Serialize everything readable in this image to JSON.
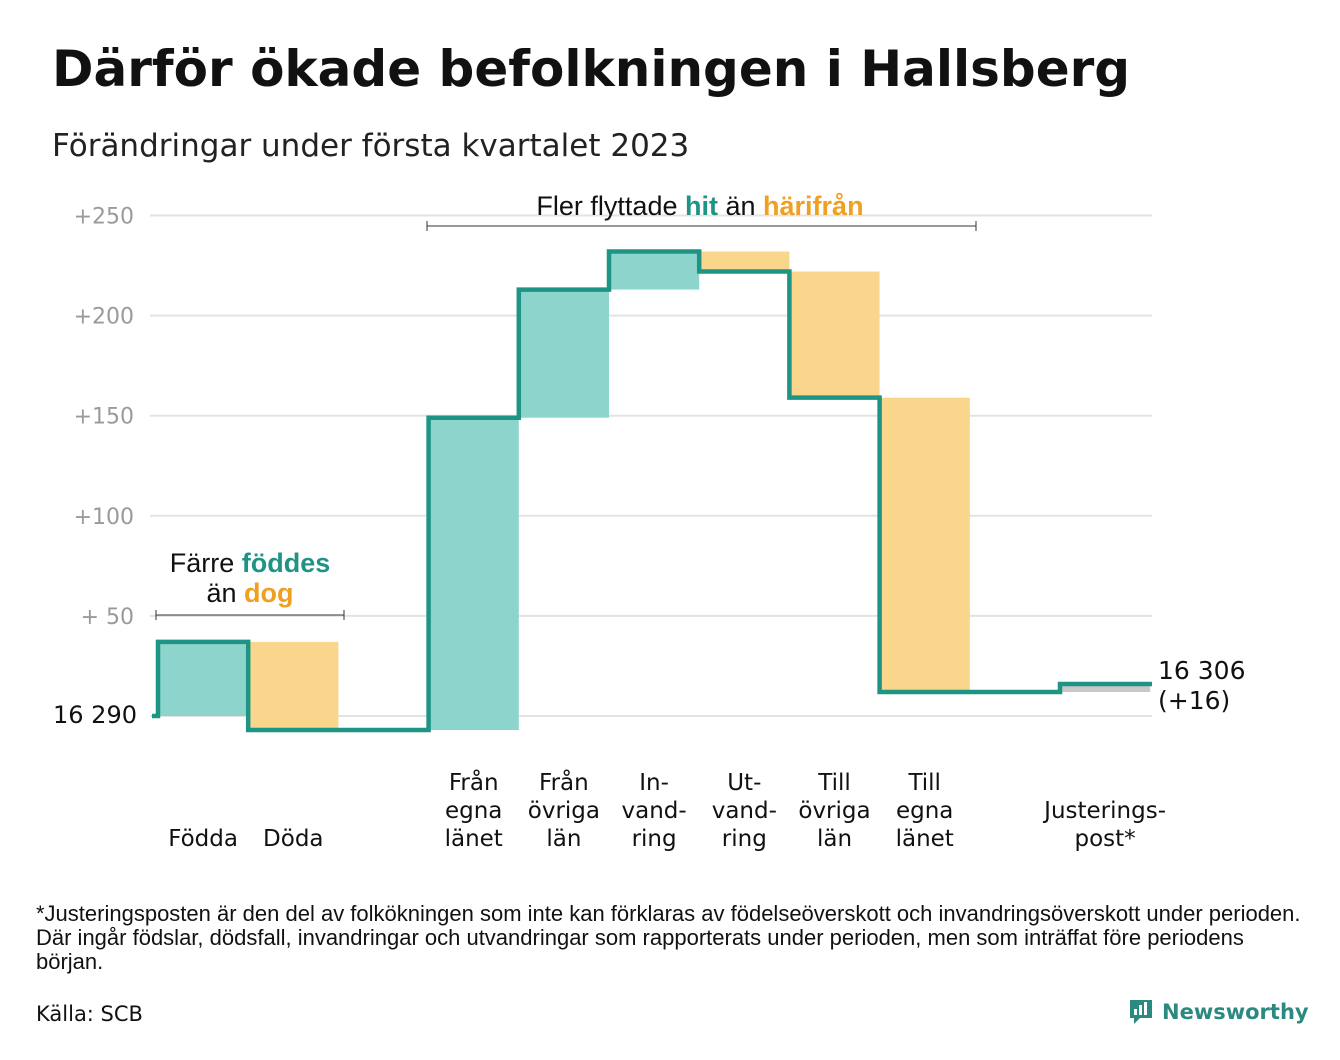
{
  "title": "Därför ökade befolkningen i Hallsberg",
  "subtitle": "Förändringar under första kvartalet 2023",
  "footnote": "*Justeringsposten är den del av folkökningen som inte kan förklaras av födelseöverskott och invandringsöverskott under perioden. Där ingår födslar, dödsfall, invandringar och utvandringar som rapporterats under perioden, men som inträffat före periodens början.",
  "source": "Källa: SCB",
  "brand": "Newsworthy",
  "colors": {
    "increase": "#8dd5cc",
    "decrease": "#fad58c",
    "adjustment": "#c8c8c8",
    "line": "#1e9484",
    "grid": "#e3e3e3",
    "tick": "#9a9a9a",
    "accent_teal": "#1e9484",
    "accent_orange": "#f0a020"
  },
  "annotations": {
    "birth_death": {
      "line1_pre": "Färre ",
      "line1_hl": "föddes",
      "line2_pre": "än ",
      "line2_hl": "dog"
    },
    "migration": {
      "pre": "Fler flyttade ",
      "hl1": "hit",
      "mid": " än ",
      "hl2": "härifrån"
    }
  },
  "chart_data": {
    "type": "waterfall",
    "start_value": 16290,
    "start_label": "16 290",
    "end_value": 16306,
    "end_label_value": "16 306",
    "end_label_change": "(+16)",
    "ylim": [
      -8,
      250
    ],
    "yticks": [
      {
        "value": 50,
        "label": "+ 50"
      },
      {
        "value": 100,
        "label": "+100"
      },
      {
        "value": 150,
        "label": "+150"
      },
      {
        "value": 200,
        "label": "+200"
      },
      {
        "value": 250,
        "label": "+250"
      }
    ],
    "steps": [
      {
        "label": [
          "Födda"
        ],
        "value": 37,
        "kind": "increase",
        "slot": 0
      },
      {
        "label": [
          "Döda"
        ],
        "value": -44,
        "kind": "decrease",
        "slot": 1
      },
      {
        "label": [
          "Från",
          "egna",
          "länet"
        ],
        "value": 156,
        "kind": "increase",
        "slot": 3
      },
      {
        "label": [
          "Från",
          "övriga",
          "län"
        ],
        "value": 64,
        "kind": "increase",
        "slot": 4
      },
      {
        "label": [
          "In-",
          "vand-",
          "ring"
        ],
        "value": 19,
        "kind": "increase",
        "slot": 5
      },
      {
        "label": [
          "Ut-",
          "vand-",
          "ring"
        ],
        "value": -10,
        "kind": "decrease",
        "slot": 6
      },
      {
        "label": [
          "Till",
          "övriga",
          "län"
        ],
        "value": -63,
        "kind": "decrease",
        "slot": 7
      },
      {
        "label": [
          "Till",
          "egna",
          "länet"
        ],
        "value": -147,
        "kind": "decrease",
        "slot": 8
      },
      {
        "label": [
          "Justerings-",
          "post*"
        ],
        "value": 4,
        "kind": "adjustment",
        "slot": 10
      }
    ]
  }
}
